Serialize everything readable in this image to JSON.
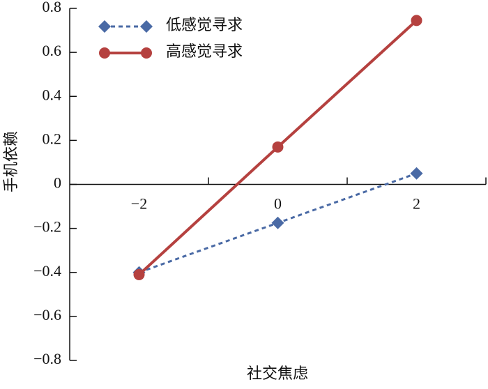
{
  "chart_data": {
    "type": "line",
    "x_label": "社交焦虑",
    "y_label": "手机依赖",
    "x": [
      -2,
      0,
      2
    ],
    "series": [
      {
        "name": "低感觉寻求",
        "color": "#4a6aa5",
        "dash": true,
        "marker": "diamond",
        "values": [
          -0.4,
          -0.175,
          0.05
        ]
      },
      {
        "name": "高感觉寻求",
        "color": "#b5413f",
        "dash": false,
        "marker": "circle",
        "values": [
          -0.41,
          0.17,
          0.745
        ]
      }
    ],
    "xlim": [
      -3,
      3
    ],
    "xticks": [
      {
        "value": -2,
        "label": "−2"
      },
      0,
      2
    ],
    "xminor_ticks": [
      -1,
      1,
      3
    ],
    "ylim": [
      -0.8,
      0.8
    ],
    "yticks": [
      0.8,
      0.6,
      0.4,
      0.2,
      0,
      {
        "value": -0.2,
        "label": "−0.2"
      },
      {
        "value": -0.4,
        "label": "−0.4"
      },
      {
        "value": -0.6,
        "label": "−0.6"
      },
      {
        "value": -0.8,
        "label": "−0.8"
      }
    ]
  }
}
